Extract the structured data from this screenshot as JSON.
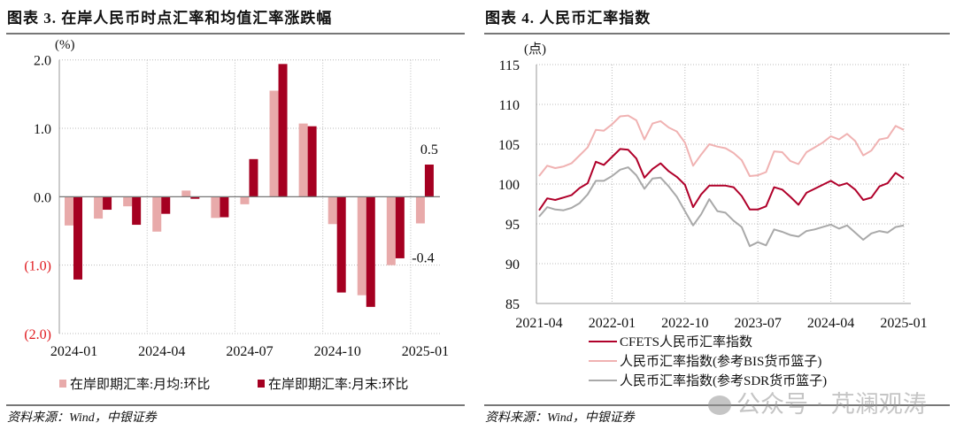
{
  "left_panel": {
    "title": "图表 3. 在岸人民币时点汇率和均值汇率涨跌幅",
    "source": "资料来源：Wind，中银证券"
  },
  "right_panel": {
    "title": "图表 4. 人民币汇率指数",
    "source": "资料来源：Wind，中银证券"
  },
  "watermark": "公众号 · 芃澜观涛",
  "chart_data": [
    {
      "type": "bar",
      "ylabel": "(%)",
      "ylim": [
        -2.0,
        2.0
      ],
      "yticks": [
        2.0,
        1.0,
        0.0,
        -1.0,
        -2.0
      ],
      "ytick_labels": [
        "2.0",
        "1.0",
        "0.0",
        "(1.0)",
        "(2.0)"
      ],
      "negative_tick_color": "#e0191e",
      "grid": true,
      "legend": "bottom",
      "categories": [
        "2024-01",
        "2024-02",
        "2024-03",
        "2024-04",
        "2024-05",
        "2024-06",
        "2024-07",
        "2024-08",
        "2024-09",
        "2024-10",
        "2024-11",
        "2024-12",
        "2025-01"
      ],
      "xtick_labels": [
        "2024-01",
        "2024-04",
        "2024-07",
        "2024-10",
        "2025-01"
      ],
      "series": [
        {
          "name": "在岸即期汇率:月均:环比",
          "color": "#e8aaaa",
          "values": [
            -0.42,
            -0.32,
            -0.14,
            -0.51,
            0.09,
            -0.31,
            -0.11,
            1.55,
            1.07,
            -0.4,
            -1.44,
            -1.0,
            -0.39
          ]
        },
        {
          "name": "在岸即期汇率:月末:环比",
          "color": "#a50021",
          "values": [
            -1.21,
            -0.19,
            -0.41,
            -0.25,
            -0.03,
            -0.3,
            0.55,
            1.94,
            1.03,
            -1.4,
            -1.61,
            -0.9,
            0.47
          ]
        }
      ],
      "annotations": [
        {
          "text": "0.5",
          "series": 1,
          "category": "2025-01"
        },
        {
          "text": "-0.4",
          "series": 0,
          "category": "2025-01"
        }
      ]
    },
    {
      "type": "line",
      "ylabel": "(点)",
      "ylim": [
        85,
        115
      ],
      "yticks": [
        115,
        110,
        105,
        100,
        95,
        90,
        85
      ],
      "grid": true,
      "legend": "bottom",
      "x_start": "2021-04",
      "x_end": "2025-01",
      "xtick_labels": [
        "2021-04",
        "2022-01",
        "2022-10",
        "2023-07",
        "2024-04",
        "2025-01"
      ],
      "series": [
        {
          "name": "CFETS人民币汇率指数",
          "color": "#b0002a",
          "values": [
            96.7,
            98.2,
            98.0,
            98.3,
            98.6,
            99.5,
            100.1,
            102.8,
            102.4,
            103.4,
            104.4,
            104.3,
            103.2,
            100.8,
            101.9,
            102.6,
            101.6,
            100.9,
            99.9,
            97.1,
            98.7,
            99.8,
            99.8,
            99.8,
            99.6,
            98.5,
            96.8,
            96.8,
            97.2,
            99.6,
            99.3,
            98.4,
            97.4,
            98.9,
            99.4,
            99.9,
            100.4,
            99.8,
            100.1,
            99.3,
            98.0,
            98.3,
            99.7,
            100.1,
            101.4,
            100.7
          ]
        },
        {
          "name": "人民币汇率指数(参考BIS货币篮子)",
          "color": "#f0b2b2",
          "values": [
            101.0,
            102.3,
            102.0,
            102.2,
            102.6,
            103.6,
            104.6,
            106.8,
            106.7,
            107.5,
            108.5,
            108.6,
            108.0,
            105.6,
            107.6,
            107.9,
            107.1,
            106.6,
            105.2,
            102.3,
            103.7,
            105.0,
            104.7,
            104.5,
            103.9,
            103.0,
            101.0,
            101.1,
            101.5,
            104.1,
            104.0,
            102.9,
            102.5,
            104.0,
            104.6,
            105.2,
            106.0,
            105.6,
            106.3,
            105.4,
            103.6,
            104.2,
            105.6,
            105.8,
            107.3,
            106.8
          ]
        },
        {
          "name": "人民币汇率指数(参考SDR货币篮子)",
          "color": "#a9a9a9",
          "values": [
            95.9,
            97.1,
            96.8,
            96.7,
            97.0,
            97.6,
            98.7,
            100.4,
            100.4,
            101.0,
            101.8,
            102.1,
            101.1,
            99.4,
            100.7,
            100.8,
            99.7,
            98.4,
            96.6,
            94.8,
            96.2,
            98.1,
            96.6,
            96.4,
            95.4,
            94.6,
            92.2,
            92.7,
            92.3,
            94.3,
            94.0,
            93.6,
            93.4,
            94.1,
            94.3,
            94.6,
            94.9,
            94.4,
            94.8,
            93.9,
            93.0,
            93.8,
            94.1,
            93.9,
            94.6,
            94.8
          ]
        }
      ]
    }
  ]
}
